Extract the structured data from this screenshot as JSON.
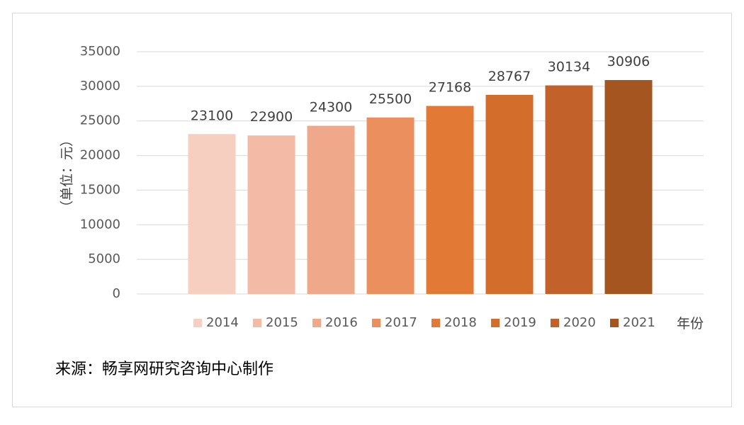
{
  "chart_data": {
    "type": "bar",
    "categories": [
      "2014",
      "2015",
      "2016",
      "2017",
      "2018",
      "2019",
      "2020",
      "2021"
    ],
    "values": [
      23100,
      22900,
      24300,
      25500,
      27168,
      28767,
      30134,
      30906
    ],
    "colors": [
      "#f6cfc0",
      "#f3bba6",
      "#f0a88a",
      "#ec8f5e",
      "#e27934",
      "#d26d2c",
      "#c26129",
      "#a55620"
    ],
    "ylabel": "（单位：元）",
    "xlabel": "年份",
    "yticks": [
      "0",
      "5000",
      "10000",
      "15000",
      "20000",
      "25000",
      "30000",
      "35000"
    ],
    "ylim": [
      0,
      35000
    ],
    "grid": true,
    "legend": "bottom"
  },
  "source": "来源：畅享网研究咨询中心制作"
}
